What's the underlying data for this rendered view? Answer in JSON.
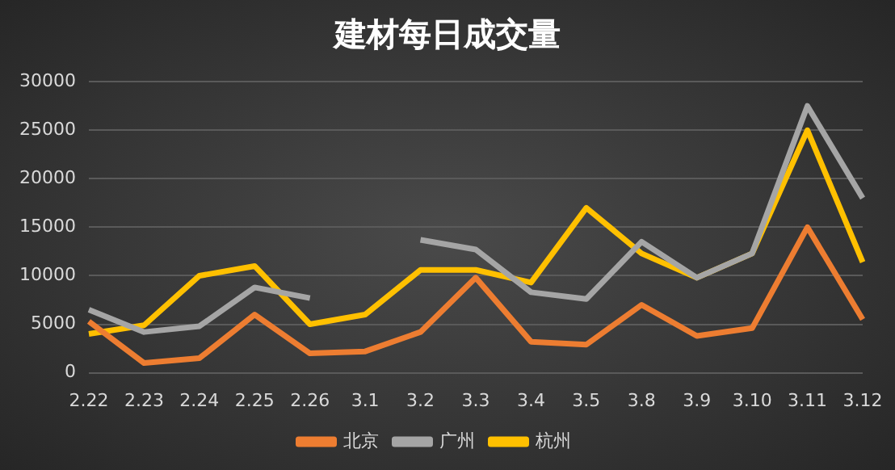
{
  "chart_data": {
    "type": "line",
    "title": "建材每日成交量",
    "categories": [
      "2.22",
      "2.23",
      "2.24",
      "2.25",
      "2.26",
      "3.1",
      "3.2",
      "3.3",
      "3.4",
      "3.5",
      "3.8",
      "3.9",
      "3.10",
      "3.11",
      "3.12"
    ],
    "series": [
      {
        "name": "北京",
        "color": "#ed7d31",
        "values": [
          5300,
          1000,
          1500,
          6000,
          2000,
          2200,
          4200,
          9800,
          3200,
          2900,
          7000,
          3800,
          4600,
          15000,
          5500
        ]
      },
      {
        "name": "广州",
        "color": "#a5a5a5",
        "values": [
          6500,
          4200,
          4800,
          8800,
          7700,
          null,
          13700,
          12700,
          8300,
          7600,
          13500,
          9800,
          12300,
          27500,
          18000
        ]
      },
      {
        "name": "杭州",
        "color": "#ffc000",
        "values": [
          4000,
          4900,
          10000,
          11000,
          5000,
          6000,
          10600,
          10600,
          9300,
          17000,
          12300,
          9800,
          12300,
          25000,
          11400
        ]
      }
    ],
    "ylim": [
      0,
      30000
    ],
    "yticks": [
      0,
      5000,
      10000,
      15000,
      20000,
      25000,
      30000
    ],
    "grid": "y",
    "legend": "bottom",
    "marker": "none",
    "line_style": "solid"
  }
}
